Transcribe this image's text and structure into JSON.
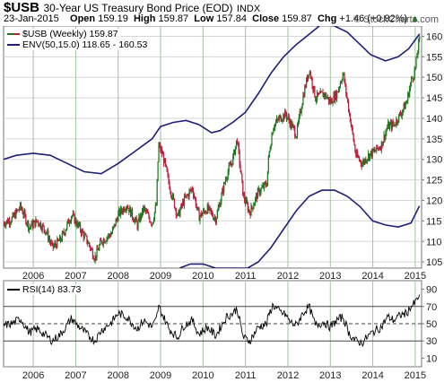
{
  "header": {
    "symbol": "$USB",
    "title": "30-Year US Treasury Bond Price (EOD)",
    "exchange": "INDX",
    "date": "23-Jan-2015",
    "open_label": "Open",
    "open": "159.19",
    "high_label": "High",
    "high": "159.87",
    "low_label": "Low",
    "low": "157.84",
    "close_label": "Close",
    "close": "159.87",
    "chg_label": "Chg",
    "chg": "+1.46 (+0.92%)",
    "chg_arrow": "▲",
    "watermark": "© StockCharts.com"
  },
  "colors": {
    "up": "#1f7a1f",
    "down": "#c01b3c",
    "envelope": "#1f1f7a",
    "rsi": "#000000",
    "grid": "#d7d7d7",
    "year_line": "#9fc49f"
  },
  "chart_data": [
    {
      "type": "candlestick",
      "legend": [
        {
          "label": "$USB (Weekly) 159.87",
          "swatch": "candles"
        },
        {
          "label": "ENV(50,15.0) 118.65 - 160.53",
          "swatch": "line"
        }
      ],
      "ylim": [
        103.5,
        162.5
      ],
      "yticks": [
        105,
        110,
        115,
        120,
        125,
        130,
        135,
        140,
        145,
        150,
        155,
        160
      ],
      "x_tick_labels": [
        "2006",
        "2007",
        "2008",
        "2009",
        "2010",
        "2011",
        "2012",
        "2013",
        "2014",
        "2015"
      ],
      "xlim": [
        2005.3,
        2015.15
      ],
      "close_path": [
        [
          2005.3,
          114.5
        ],
        [
          2005.5,
          115.5
        ],
        [
          2005.7,
          118.5
        ],
        [
          2005.9,
          113.5
        ],
        [
          2006.1,
          115
        ],
        [
          2006.3,
          112.5
        ],
        [
          2006.45,
          108.5
        ],
        [
          2006.65,
          110.5
        ],
        [
          2006.9,
          116.5
        ],
        [
          2007.05,
          114
        ],
        [
          2007.3,
          109.5
        ],
        [
          2007.45,
          106
        ],
        [
          2007.6,
          110
        ],
        [
          2007.85,
          112
        ],
        [
          2008.0,
          116.5
        ],
        [
          2008.2,
          119
        ],
        [
          2008.45,
          114
        ],
        [
          2008.6,
          118
        ],
        [
          2008.8,
          114.5
        ],
        [
          2008.9,
          119
        ],
        [
          2008.95,
          133.5
        ],
        [
          2009.05,
          131
        ],
        [
          2009.2,
          124
        ],
        [
          2009.4,
          116
        ],
        [
          2009.55,
          120
        ],
        [
          2009.75,
          123
        ],
        [
          2009.9,
          116
        ],
        [
          2010.1,
          118
        ],
        [
          2010.3,
          115.5
        ],
        [
          2010.55,
          126
        ],
        [
          2010.7,
          130
        ],
        [
          2010.8,
          135
        ],
        [
          2010.95,
          121
        ],
        [
          2011.1,
          117
        ],
        [
          2011.3,
          122
        ],
        [
          2011.5,
          124
        ],
        [
          2011.55,
          131
        ],
        [
          2011.65,
          138
        ],
        [
          2011.8,
          140
        ],
        [
          2011.95,
          141
        ],
        [
          2012.05,
          139
        ],
        [
          2012.2,
          136
        ],
        [
          2012.35,
          145
        ],
        [
          2012.5,
          152
        ],
        [
          2012.65,
          145
        ],
        [
          2012.85,
          146
        ],
        [
          2013.0,
          144
        ],
        [
          2013.15,
          146
        ],
        [
          2013.3,
          151
        ],
        [
          2013.45,
          141
        ],
        [
          2013.6,
          131
        ],
        [
          2013.75,
          129
        ],
        [
          2013.9,
          131
        ],
        [
          2014.05,
          132
        ],
        [
          2014.2,
          133.5
        ],
        [
          2014.35,
          138
        ],
        [
          2014.5,
          138.5
        ],
        [
          2014.65,
          141
        ],
        [
          2014.8,
          144
        ],
        [
          2014.9,
          149
        ],
        [
          2015.0,
          152
        ],
        [
          2015.1,
          159.87
        ]
      ],
      "envelope_upper": [
        [
          2005.3,
          130
        ],
        [
          2005.6,
          131
        ],
        [
          2006.0,
          131.5
        ],
        [
          2006.4,
          131
        ],
        [
          2006.8,
          129
        ],
        [
          2007.2,
          127
        ],
        [
          2007.6,
          126.5
        ],
        [
          2008.0,
          129
        ],
        [
          2008.4,
          132
        ],
        [
          2008.8,
          135
        ],
        [
          2009.0,
          138
        ],
        [
          2009.3,
          139
        ],
        [
          2009.6,
          139.5
        ],
        [
          2009.9,
          138.5
        ],
        [
          2010.2,
          136.5
        ],
        [
          2010.4,
          137
        ],
        [
          2010.7,
          139
        ],
        [
          2011.0,
          141.5
        ],
        [
          2011.3,
          146
        ],
        [
          2011.6,
          151
        ],
        [
          2011.9,
          155
        ],
        [
          2012.2,
          158
        ],
        [
          2012.5,
          160.5
        ],
        [
          2012.8,
          163
        ],
        [
          2013.1,
          162.5
        ],
        [
          2013.4,
          161
        ],
        [
          2013.7,
          158
        ],
        [
          2013.95,
          155.5
        ],
        [
          2014.3,
          154
        ],
        [
          2014.6,
          155
        ],
        [
          2014.85,
          157
        ],
        [
          2015.1,
          160.53
        ]
      ],
      "envelope_lower": [
        [
          2009.45,
          103.5
        ],
        [
          2009.7,
          104.5
        ],
        [
          2010.0,
          104.5
        ],
        [
          2010.3,
          103.5
        ],
        [
          2011.05,
          103.5
        ],
        [
          2011.3,
          105
        ],
        [
          2011.6,
          108.5
        ],
        [
          2011.9,
          113
        ],
        [
          2012.2,
          117.5
        ],
        [
          2012.5,
          121
        ],
        [
          2012.8,
          122.5
        ],
        [
          2013.1,
          122.5
        ],
        [
          2013.4,
          121
        ],
        [
          2013.7,
          118.5
        ],
        [
          2014.0,
          115
        ],
        [
          2014.3,
          114
        ],
        [
          2014.6,
          113.5
        ],
        [
          2014.9,
          114.5
        ],
        [
          2015.1,
          118.65
        ]
      ]
    },
    {
      "type": "line",
      "legend": [
        {
          "label": "RSI(14) 83.73",
          "swatch": "line"
        }
      ],
      "ylim": [
        0,
        100
      ],
      "yticks": [
        10,
        30,
        50,
        70,
        90
      ],
      "reference_lines": [
        30,
        50,
        70
      ],
      "x_tick_labels": [
        "2006",
        "2007",
        "2008",
        "2009",
        "2010",
        "2011",
        "2012",
        "2013",
        "2014",
        "2015"
      ],
      "xlim": [
        2005.3,
        2015.15
      ],
      "series": [
        {
          "values": [
            [
              2005.3,
              48
            ],
            [
              2005.5,
              50
            ],
            [
              2005.7,
              56
            ],
            [
              2005.9,
              40
            ],
            [
              2006.1,
              44
            ],
            [
              2006.3,
              36
            ],
            [
              2006.45,
              30
            ],
            [
              2006.65,
              38
            ],
            [
              2006.9,
              56
            ],
            [
              2007.05,
              48
            ],
            [
              2007.3,
              36
            ],
            [
              2007.45,
              30
            ],
            [
              2007.6,
              42
            ],
            [
              2007.85,
              52
            ],
            [
              2008.0,
              62
            ],
            [
              2008.2,
              58
            ],
            [
              2008.45,
              44
            ],
            [
              2008.6,
              54
            ],
            [
              2008.8,
              46
            ],
            [
              2008.9,
              55
            ],
            [
              2008.95,
              70
            ],
            [
              2009.05,
              60
            ],
            [
              2009.2,
              44
            ],
            [
              2009.4,
              34
            ],
            [
              2009.55,
              48
            ],
            [
              2009.75,
              54
            ],
            [
              2009.9,
              38
            ],
            [
              2010.1,
              46
            ],
            [
              2010.3,
              36
            ],
            [
              2010.55,
              58
            ],
            [
              2010.7,
              62
            ],
            [
              2010.8,
              68
            ],
            [
              2010.95,
              34
            ],
            [
              2011.1,
              30
            ],
            [
              2011.3,
              46
            ],
            [
              2011.5,
              50
            ],
            [
              2011.55,
              60
            ],
            [
              2011.65,
              72
            ],
            [
              2011.8,
              64
            ],
            [
              2011.95,
              60
            ],
            [
              2012.05,
              52
            ],
            [
              2012.2,
              48
            ],
            [
              2012.35,
              62
            ],
            [
              2012.5,
              70
            ],
            [
              2012.65,
              48
            ],
            [
              2012.85,
              52
            ],
            [
              2013.0,
              46
            ],
            [
              2013.15,
              54
            ],
            [
              2013.3,
              58
            ],
            [
              2013.45,
              38
            ],
            [
              2013.6,
              30
            ],
            [
              2013.75,
              28
            ],
            [
              2013.9,
              36
            ],
            [
              2014.05,
              42
            ],
            [
              2014.2,
              46
            ],
            [
              2014.35,
              58
            ],
            [
              2014.5,
              54
            ],
            [
              2014.65,
              60
            ],
            [
              2014.8,
              62
            ],
            [
              2014.9,
              70
            ],
            [
              2015.0,
              74
            ],
            [
              2015.1,
              83.73
            ]
          ]
        }
      ]
    }
  ]
}
